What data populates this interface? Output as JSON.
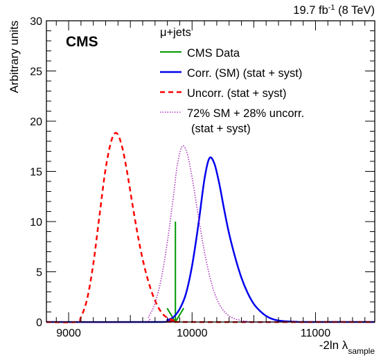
{
  "chart_data": {
    "type": "line",
    "lumi_label": {
      "value": "19.7 fb",
      "sup": "-1",
      "suffix": " (8 TeV)"
    },
    "experiment_label": "CMS",
    "xlabel": {
      "main": "-2ln λ",
      "sub": "sample"
    },
    "ylabel": "Arbitrary units",
    "xlim": [
      8820,
      11480
    ],
    "ylim": [
      0,
      30
    ],
    "x_ticks": [
      9000,
      10000,
      11000
    ],
    "x_tick_labels": [
      "9000",
      "10000",
      "11000"
    ],
    "y_ticks": [
      0,
      5,
      10,
      15,
      20,
      25,
      30
    ],
    "y_tick_labels": [
      "0",
      "5",
      "10",
      "15",
      "20",
      "25",
      "30"
    ],
    "legend_header": "μ+jets",
    "legend_position": "top-right",
    "series": [
      {
        "name": "CMS Data",
        "kind": "arrow",
        "color": "#009900",
        "x": 9865,
        "y_top": 10.0
      },
      {
        "name": "Corr. (SM) (stat + syst)",
        "kind": "curve",
        "color": "#0000ee",
        "style": "solid",
        "peak_x": 10140,
        "peak_y": 16.3,
        "x": [
          9750,
          9800,
          9850,
          9900,
          9950,
          10000,
          10050,
          10100,
          10140,
          10180,
          10220,
          10260,
          10300,
          10350,
          10400,
          10450,
          10500,
          10550,
          10600,
          10650,
          10700,
          10750,
          10800,
          10850,
          10900
        ],
        "y": [
          0.0,
          0.2,
          0.5,
          1.3,
          2.8,
          5.6,
          9.6,
          14.2,
          16.3,
          15.8,
          13.8,
          11.2,
          8.8,
          6.4,
          4.4,
          2.9,
          1.8,
          1.1,
          0.6,
          0.3,
          0.15,
          0.08,
          0.04,
          0.02,
          0.0
        ]
      },
      {
        "name": "Uncorr. (stat + syst)",
        "kind": "curve",
        "color": "#ff0000",
        "style": "dashed",
        "peak_x": 9390,
        "peak_y": 18.8,
        "x": [
          9060,
          9100,
          9150,
          9200,
          9250,
          9300,
          9350,
          9390,
          9430,
          9470,
          9520,
          9570,
          9620,
          9670,
          9720,
          9770,
          9820,
          9870,
          9920
        ],
        "y": [
          0.0,
          0.5,
          2.3,
          5.8,
          10.6,
          15.3,
          18.2,
          18.8,
          17.6,
          15.2,
          11.5,
          8.0,
          5.2,
          3.1,
          1.6,
          0.7,
          0.3,
          0.1,
          0.0
        ]
      },
      {
        "name": "72% SM + 28% uncorr.",
        "name_line2": "(stat + syst)",
        "kind": "curve",
        "color": "#aa33bb",
        "style": "dotted",
        "peak_x": 9920,
        "peak_y": 17.5,
        "x": [
          9580,
          9650,
          9700,
          9750,
          9800,
          9850,
          9880,
          9920,
          9960,
          10000,
          10050,
          10100,
          10150,
          10200,
          10250,
          10300,
          10350,
          10400,
          10450,
          10500
        ],
        "y": [
          0.0,
          0.6,
          1.9,
          4.3,
          8.0,
          12.6,
          15.6,
          17.5,
          16.8,
          14.4,
          10.6,
          7.0,
          4.2,
          2.3,
          1.2,
          0.6,
          0.3,
          0.15,
          0.05,
          0.0
        ]
      }
    ]
  }
}
